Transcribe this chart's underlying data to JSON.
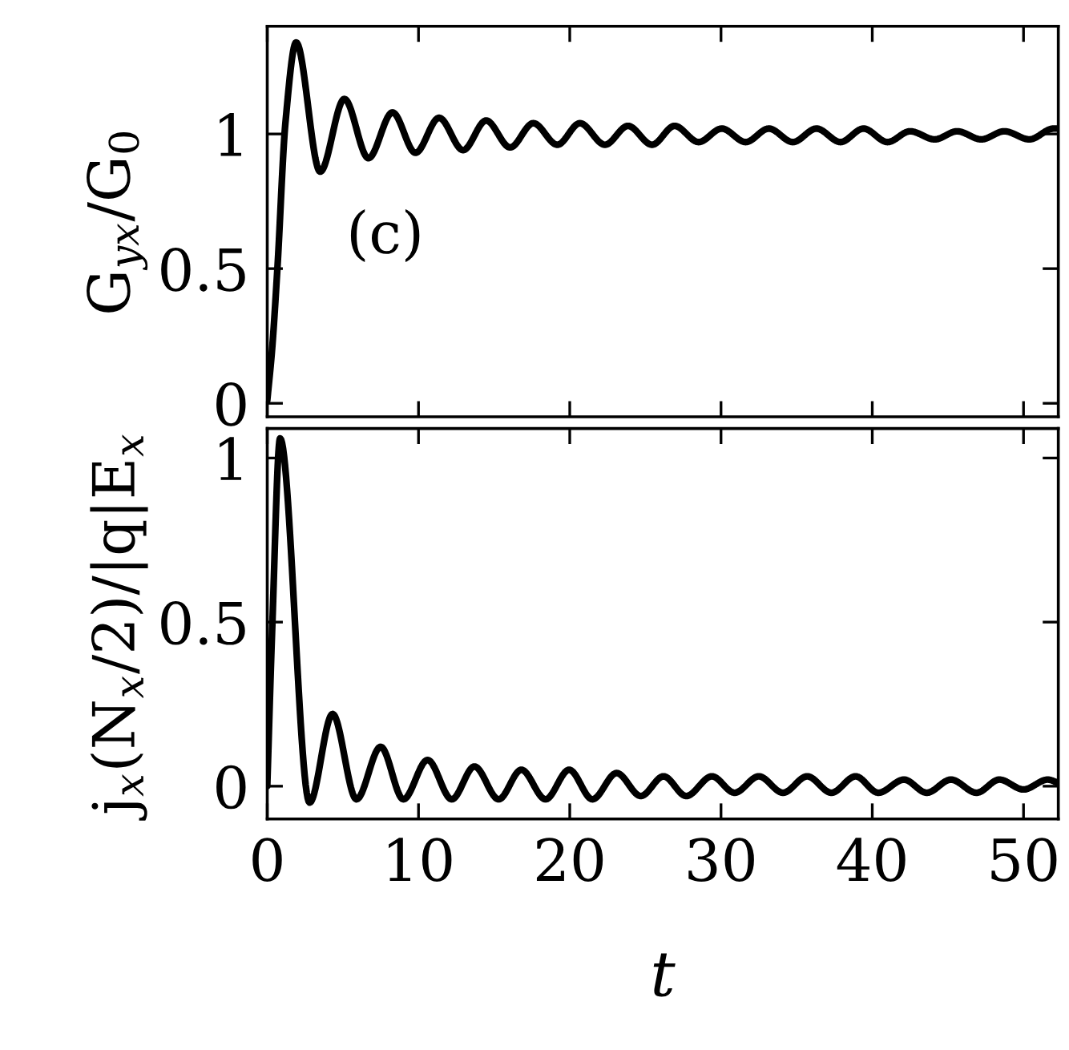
{
  "chart_data": [
    {
      "type": "line",
      "ylabel": "G$_{yx}$/G$_{0}$",
      "annotations": [
        "(c)"
      ],
      "tick_labels": "y",
      "grid": false,
      "legend": false,
      "marker": "none",
      "line_style": "solid",
      "xlim": [
        0,
        52.3
      ],
      "ylim": [
        -0.05,
        1.4
      ],
      "xticks": [
        0,
        10,
        20,
        30,
        40,
        50
      ],
      "yticks": [
        0,
        0.5,
        1
      ],
      "series": [
        {
          "color": "#000000",
          "x": [
            0,
            0.32,
            0.67,
            1.2,
            1.91,
            3.5,
            5.1,
            6.69,
            8.28,
            9.8,
            11.36,
            12.95,
            14.47,
            16.06,
            17.59,
            19.18,
            20.67,
            22.33,
            23.85,
            25.44,
            26.93,
            28.52,
            30.05,
            31.63,
            33.16,
            34.75,
            36.31,
            37.9,
            39.42,
            41.01,
            42.5,
            44.13,
            45.61,
            47.21,
            48.73,
            50.39,
            51.98,
            52.3
          ],
          "values": [
            0.01,
            0.2,
            0.5,
            1.04,
            1.34,
            0.86,
            1.13,
            0.91,
            1.08,
            0.93,
            1.06,
            0.94,
            1.05,
            0.95,
            1.04,
            0.96,
            1.04,
            0.96,
            1.03,
            0.96,
            1.03,
            0.97,
            1.02,
            0.97,
            1.02,
            0.97,
            1.02,
            0.97,
            1.02,
            0.97,
            1.01,
            0.98,
            1.01,
            0.98,
            1.01,
            0.98,
            1.02,
            1.02
          ]
        }
      ]
    },
    {
      "type": "line",
      "xlabel": "t",
      "ylabel": "j$_{x}$(N$_{x}$/2)/|q|E$_{x}$",
      "grid": false,
      "legend": false,
      "marker": "none",
      "line_style": "solid",
      "xlim": [
        0,
        52.3
      ],
      "ylim": [
        -0.1,
        1.09
      ],
      "xticks": [
        0,
        10,
        20,
        30,
        40,
        50
      ],
      "yticks": [
        0,
        0.5,
        1
      ],
      "series": [
        {
          "color": "#000000",
          "x": [
            0,
            0.32,
            0.85,
            2.8,
            4.32,
            5.9,
            7.5,
            9.0,
            10.6,
            12.2,
            13.7,
            15.3,
            16.8,
            18.4,
            19.96,
            21.5,
            23.1,
            24.7,
            26.2,
            27.7,
            29.4,
            30.9,
            32.5,
            34.1,
            35.7,
            37.3,
            38.9,
            40.4,
            42.1,
            43.6,
            45.2,
            46.9,
            48.4,
            50.0,
            51.6,
            52.3
          ],
          "values": [
            0,
            0.47,
            1.06,
            -0.05,
            0.22,
            -0.04,
            0.12,
            -0.04,
            0.08,
            -0.04,
            0.06,
            -0.04,
            0.05,
            -0.04,
            0.05,
            -0.04,
            0.04,
            -0.03,
            0.03,
            -0.03,
            0.03,
            -0.02,
            0.03,
            -0.02,
            0.03,
            -0.02,
            0.03,
            -0.02,
            0.02,
            -0.02,
            0.02,
            -0.02,
            0.02,
            -0.01,
            0.02,
            0.01
          ]
        }
      ]
    }
  ]
}
